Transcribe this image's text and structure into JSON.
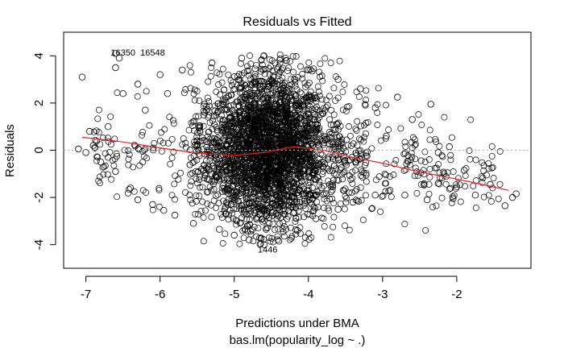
{
  "chart_data": {
    "type": "scatter",
    "title": "Residuals vs Fitted",
    "xlabel": "Predictions under BMA",
    "sub": "bas.lm(popularity_log ~ .)",
    "ylabel": "Residuals",
    "xlim": [
      -7.3,
      -1.0
    ],
    "ylim": [
      -5.0,
      5.0
    ],
    "xticks": [
      -7,
      -6,
      -5,
      -4,
      -3,
      -2
    ],
    "yticks": [
      -4,
      -2,
      0,
      2,
      4
    ],
    "xtick_labels": [
      "-7",
      "-6",
      "-5",
      "-4",
      "-3",
      "-2"
    ],
    "ytick_labels": [
      "-4",
      "-2",
      "0",
      "2",
      "4"
    ],
    "reference_line_y": 0,
    "smooth": {
      "name": "",
      "x": [
        -7.05,
        -6.5,
        -6.0,
        -5.5,
        -5.0,
        -4.6,
        -4.2,
        -3.8,
        -3.4,
        -3.0,
        -2.6,
        -2.2,
        -1.8,
        -1.3
      ],
      "y": [
        0.55,
        0.35,
        0.1,
        -0.12,
        -0.22,
        -0.1,
        0.15,
        0.0,
        -0.3,
        -0.55,
        -0.85,
        -1.1,
        -1.35,
        -1.7
      ]
    },
    "annotations": [
      {
        "text": "16350",
        "x": -6.5,
        "y": 4.15
      },
      {
        "text": "16548",
        "x": -6.1,
        "y": 4.15
      },
      {
        "text": "1446",
        "x": -4.55,
        "y": -4.2
      }
    ],
    "series": [
      {
        "points": [
          [
            -7.05,
            3.1
          ],
          [
            -6.6,
            4.1
          ],
          [
            -6.55,
            3.9
          ],
          [
            -6.6,
            3.5
          ],
          [
            -6.5,
            2.4
          ],
          [
            -6.95,
            0.8
          ],
          [
            -7.1,
            0.05
          ],
          [
            -7.0,
            -0.1
          ],
          [
            -6.8,
            -0.5
          ],
          [
            -6.6,
            -0.9
          ],
          [
            -6.4,
            -1.6
          ],
          [
            -6.3,
            -2.1
          ],
          [
            -6.1,
            -2.3
          ],
          [
            -5.95,
            -2.55
          ],
          [
            -5.8,
            -2.75
          ],
          [
            -5.55,
            -3.1
          ],
          [
            -5.2,
            -3.35
          ],
          [
            -5.0,
            -3.6
          ],
          [
            -4.8,
            -3.8
          ],
          [
            -4.6,
            -4.0
          ],
          [
            -4.4,
            -3.85
          ],
          [
            -4.15,
            -3.4
          ],
          [
            -3.9,
            -2.9
          ],
          [
            -3.6,
            -2.5
          ],
          [
            -3.4,
            -2.2
          ],
          [
            -3.1,
            -1.9
          ],
          [
            -2.9,
            -1.7
          ],
          [
            -2.7,
            -1.9
          ],
          [
            -2.4,
            -2.1
          ],
          [
            -2.25,
            -1.4
          ],
          [
            -2.05,
            -2.05
          ],
          [
            -1.75,
            -1.9
          ],
          [
            -1.55,
            -1.45
          ],
          [
            -1.35,
            -2.35
          ],
          [
            -1.25,
            -2.0
          ],
          [
            -1.2,
            -1.85
          ],
          [
            -1.6,
            -1.05
          ],
          [
            -1.9,
            -0.85
          ],
          [
            -2.1,
            0.15
          ],
          [
            -2.25,
            -0.1
          ],
          [
            -2.35,
            1.95
          ],
          [
            -2.6,
            1.3
          ],
          [
            -2.8,
            2.25
          ],
          [
            -2.95,
            0.6
          ],
          [
            -3.1,
            1.8
          ],
          [
            -3.3,
            2.6
          ],
          [
            -3.6,
            3.0
          ],
          [
            -4.0,
            3.4
          ],
          [
            -4.3,
            3.8
          ],
          [
            -4.6,
            4.0
          ],
          [
            -4.9,
            3.9
          ],
          [
            -5.3,
            3.7
          ],
          [
            -5.7,
            3.4
          ],
          [
            -6.0,
            3.2
          ],
          [
            -6.3,
            2.8
          ],
          [
            -6.7,
            1.0
          ],
          [
            -6.9,
            0.2
          ],
          [
            -6.7,
            -0.3
          ],
          [
            -6.2,
            1.7
          ],
          [
            -5.9,
            2.4
          ]
        ]
      }
    ]
  }
}
